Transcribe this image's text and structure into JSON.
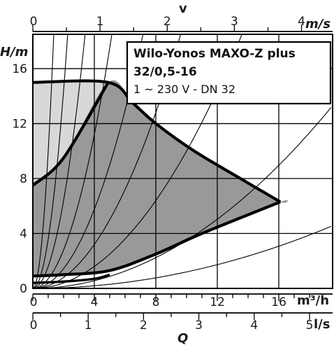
{
  "chart_data": {
    "type": "line",
    "title_line1": "Wilo-Yonos MAXO-Z plus",
    "title_line2": "32/0,5-16",
    "subtitle": "1 ~ 230 V - DN 32",
    "ylabel": "H/m",
    "xlabel": "Q",
    "top_axis_label": "v",
    "top_axis_unit": "m/s",
    "bottom_axis_unit_1": "m³/h",
    "bottom_axis_unit_2": "l/s",
    "xlim_m3h": [
      0,
      19.5
    ],
    "ylim_m": [
      0,
      18.5
    ],
    "grid": true,
    "y_ticks": [
      "0",
      "4",
      "8",
      "12",
      "16"
    ],
    "x_ticks_m3h": [
      "0",
      "4",
      "8",
      "12",
      "16"
    ],
    "x_ticks_ls": [
      "0",
      "1",
      "2",
      "3",
      "4",
      "5"
    ],
    "x_ticks_ms": [
      "0",
      "1",
      "2",
      "3",
      "4"
    ],
    "operating_region": {
      "max_curve": [
        [
          0,
          15.0
        ],
        [
          4.9,
          15.0
        ],
        [
          6.5,
          13.5
        ],
        [
          8.0,
          12.0
        ],
        [
          10.5,
          10.0
        ],
        [
          13.5,
          8.0
        ],
        [
          16.1,
          6.3
        ]
      ],
      "dynamic_curve": [
        [
          0,
          7.5
        ],
        [
          2.0,
          9.5
        ],
        [
          4.9,
          15.0
        ]
      ],
      "min_curve": [
        [
          0,
          0.9
        ],
        [
          2.0,
          1.0
        ],
        [
          5.0,
          1.3
        ],
        [
          8.0,
          2.5
        ],
        [
          11.0,
          4.0
        ],
        [
          16.1,
          6.3
        ]
      ],
      "min_lower": [
        [
          0,
          0.4
        ],
        [
          2.0,
          0.5
        ],
        [
          4.0,
          0.7
        ],
        [
          5.0,
          1.0
        ]
      ]
    },
    "system_curves_k": [
      10.0,
      3.6,
      1.6,
      0.7,
      0.36,
      0.2,
      0.1,
      0.035,
      0.012
    ],
    "colors": {
      "region_fill": "#999999",
      "upper_left_fill": "#d8d8d8",
      "curve_stroke": "#000000",
      "grid": "#000000"
    }
  }
}
